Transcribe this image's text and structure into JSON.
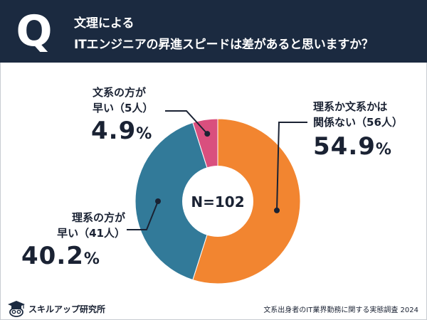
{
  "header": {
    "badge_letter": "Q",
    "title_line1": "文理による",
    "title_line2": "ITエンジニアの昇進スピードは差があると思いますか？"
  },
  "chart_data": {
    "type": "pie",
    "donut": true,
    "center_label": "N=102",
    "slices": [
      {
        "label_line1": "理系か文系かは",
        "label_line2": "関係ない（56人）",
        "count": 56,
        "percent": 54.9,
        "percent_text": "54.9",
        "color": "#f28530"
      },
      {
        "label_line1": "理系の方が",
        "label_line2": "早い（41人）",
        "count": 41,
        "percent": 40.2,
        "percent_text": "40.2",
        "color": "#327a99"
      },
      {
        "label_line1": "文系の方が",
        "label_line2": "早い（5人）",
        "count": 5,
        "percent": 4.9,
        "percent_text": "4.9",
        "color": "#d94f7e"
      }
    ],
    "percent_sign": "%"
  },
  "footer": {
    "logo_text": "スキルアップ研究所",
    "logo_icon": "owl-graduate-icon",
    "source": "文系出身者のIT業界勤務に関する実態調査 2024"
  }
}
